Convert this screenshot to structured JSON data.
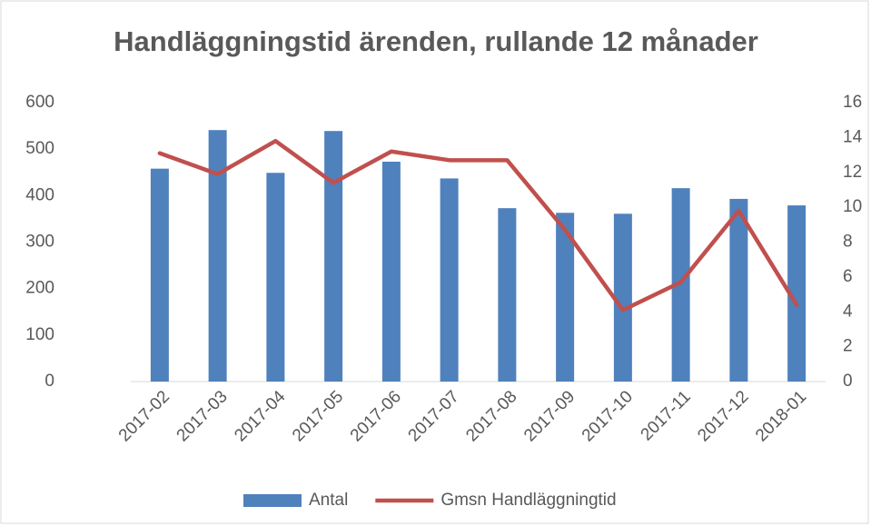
{
  "chart_data": {
    "type": "bar",
    "title": "Handläggningstid ärenden, rullande 12 månader",
    "categories": [
      "2017-02",
      "2017-03",
      "2017-04",
      "2017-05",
      "2017-06",
      "2017-07",
      "2017-08",
      "2017-09",
      "2017-10",
      "2017-11",
      "2017-12",
      "2018-01"
    ],
    "series": [
      {
        "name": "Antal",
        "type": "bar",
        "color": "#4f81bd",
        "values": [
          458,
          541,
          449,
          539,
          473,
          437,
          373,
          363,
          361,
          416,
          393,
          379
        ]
      },
      {
        "name": "Gmsn Handläggningtid",
        "type": "line",
        "axis": "y2",
        "color": "#c0504d",
        "values": [
          13.1,
          11.9,
          13.8,
          11.4,
          13.2,
          12.7,
          12.7,
          8.7,
          4.1,
          5.7,
          9.8,
          4.4
        ]
      }
    ],
    "ylim": [
      0,
      600
    ],
    "yticks": [
      0,
      100,
      200,
      300,
      400,
      500,
      600
    ],
    "y2lim": [
      0,
      16
    ],
    "y2ticks": [
      0,
      2,
      4,
      6,
      8,
      10,
      12,
      14,
      16
    ],
    "legend": "bottom"
  }
}
